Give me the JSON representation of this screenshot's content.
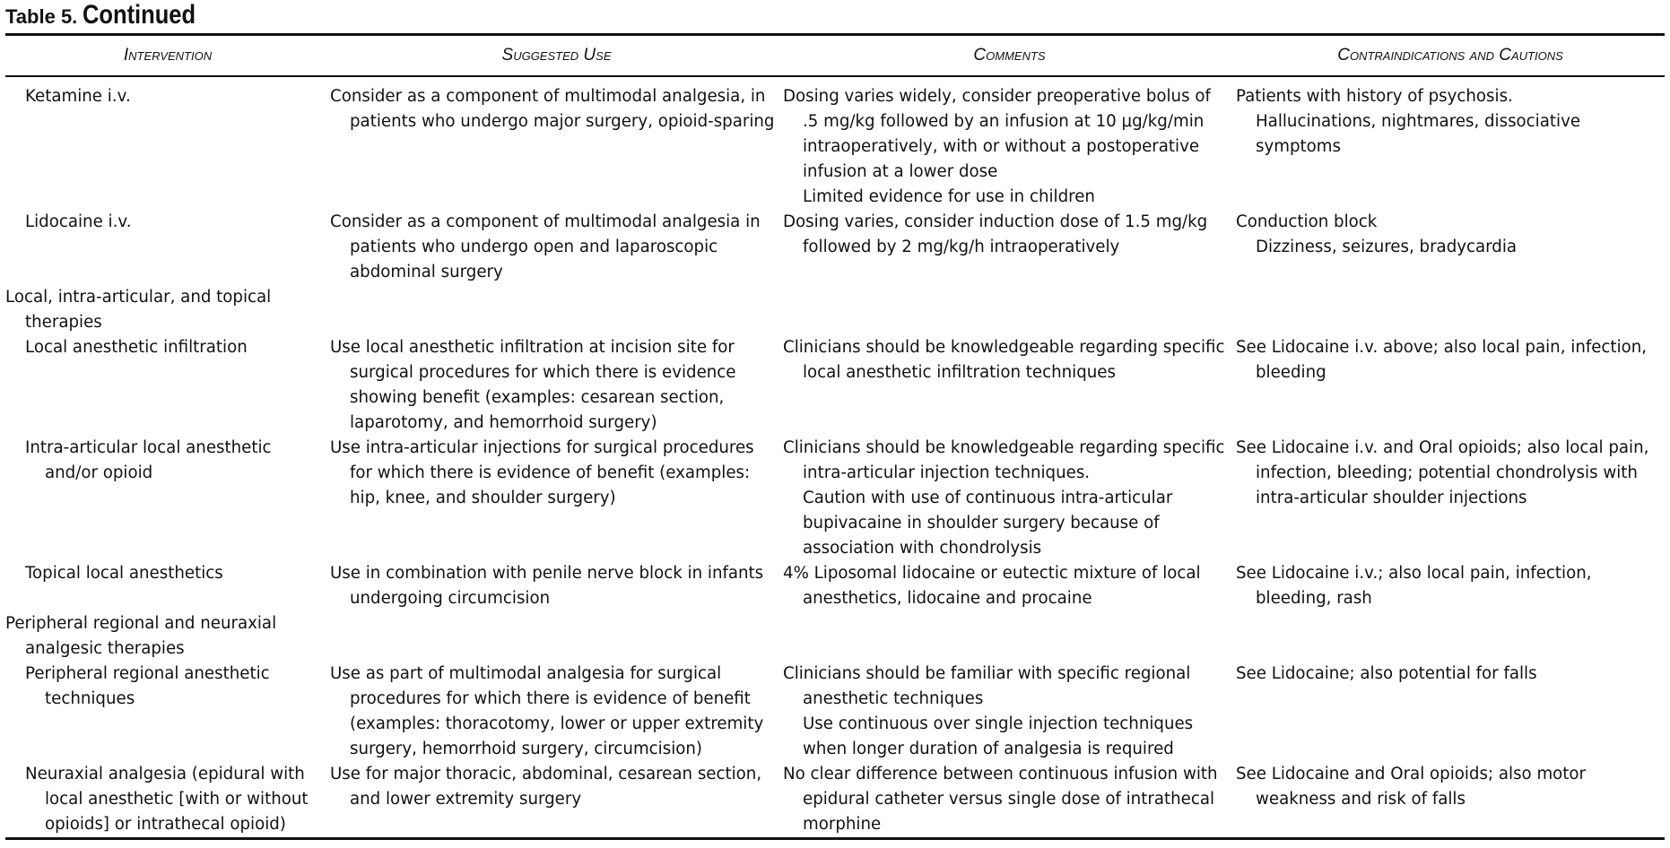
{
  "title": {
    "label": "Table 5.",
    "text": "Continued"
  },
  "table": {
    "columns": [
      "Intervention",
      "Suggested Use",
      "Comments",
      "Contraindications and Cautions"
    ],
    "rows": [
      {
        "cells": [
          [
            "Ketamine i.v."
          ],
          [
            "Consider as a component of multimodal analgesia, in patients who undergo major surgery, opioid-sparing"
          ],
          [
            "Dosing varies widely, consider preoperative bolus of .5 mg/kg followed by an infusion at 10 μg/kg/min intraoperatively, with or without a postoperative infusion at a lower dose",
            "Limited evidence for use in children"
          ],
          [
            "Patients with history of psychosis.",
            "Hallucinations, nightmares, dissociative symptoms"
          ]
        ]
      },
      {
        "cells": [
          [
            "Lidocaine i.v."
          ],
          [
            "Consider as a component of multimodal analgesia in patients who undergo open and laparoscopic abdominal surgery"
          ],
          [
            "Dosing varies, consider induction dose of 1.5 mg/kg followed by 2 mg/kg/h intraoperatively"
          ],
          [
            "Conduction block",
            "Dizziness, seizures, bradycardia"
          ]
        ]
      },
      {
        "section": "Local, intra-articular, and topical therapies"
      },
      {
        "cells": [
          [
            "Local anesthetic infiltration"
          ],
          [
            "Use local anesthetic infiltration at incision site for surgical procedures for which there is evidence showing benefit (examples: cesarean section, laparotomy, and hemorrhoid surgery)"
          ],
          [
            "Clinicians should be knowledgeable regarding specific local anesthetic infiltration techniques"
          ],
          [
            "See Lidocaine i.v. above; also local pain, infection, bleeding"
          ]
        ]
      },
      {
        "cells": [
          [
            "Intra-articular local anesthetic and/or opioid"
          ],
          [
            "Use intra-articular injections for surgical procedures for which there is evidence of benefit (examples: hip, knee, and shoulder surgery)"
          ],
          [
            "Clinicians should be knowledgeable regarding specific intra-articular injection techniques.",
            "Caution with use of continuous intra-articular bupivacaine in shoulder surgery because of association with chondrolysis"
          ],
          [
            "See Lidocaine i.v. and Oral opioids; also local pain, infection, bleeding; potential chondrolysis with intra-articular shoulder injections"
          ]
        ]
      },
      {
        "cells": [
          [
            "Topical local anesthetics"
          ],
          [
            "Use in combination with penile nerve block in infants undergoing circumcision"
          ],
          [
            "4% Liposomal lidocaine or eutectic mixture of local anesthetics, lidocaine and procaine"
          ],
          [
            "See Lidocaine i.v.; also local pain, infection, bleeding, rash"
          ]
        ]
      },
      {
        "section": "Peripheral regional and neuraxial analgesic therapies"
      },
      {
        "cells": [
          [
            "Peripheral regional anesthetic techniques"
          ],
          [
            "Use as part of multimodal analgesia for surgical procedures for which there is evidence of benefit (examples: thoracotomy, lower or upper extremity surgery, hemorrhoid surgery, circumcision)"
          ],
          [
            "Clinicians should be familiar with specific regional anesthetic techniques",
            "Use continuous over single injection techniques when longer duration of analgesia is required"
          ],
          [
            "See Lidocaine; also potential for falls"
          ]
        ]
      },
      {
        "cells": [
          [
            "Neuraxial analgesia (epidural with local anesthetic [with or without opioids] or intrathecal opioid)"
          ],
          [
            "Use for major thoracic, abdominal, cesarean section, and lower extremity surgery"
          ],
          [
            "No clear difference between continuous infusion with epidural catheter versus single dose of intrathecal morphine"
          ],
          [
            "See Lidocaine and Oral opioids; also motor weakness and risk of falls"
          ]
        ]
      }
    ]
  }
}
